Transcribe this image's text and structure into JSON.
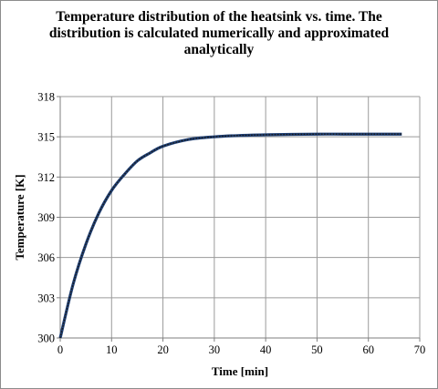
{
  "chart_data": {
    "type": "line",
    "title_lines": [
      "Temperature distribution of the heatsink vs. time.  The",
      "distribution is calculated numerically and approximated",
      "analytically"
    ],
    "xlabel": "Time [min]",
    "ylabel": "Temperature [K]",
    "xlim": [
      0,
      70
    ],
    "ylim": [
      300,
      318
    ],
    "xticks": [
      0,
      10,
      20,
      30,
      40,
      50,
      60,
      70
    ],
    "yticks": [
      300,
      303,
      306,
      309,
      312,
      315,
      318
    ],
    "grid": true,
    "series": [
      {
        "style": "solid",
        "color": "#1f3f73",
        "x": [
          0,
          2.5,
          5,
          7.5,
          10,
          12.5,
          15,
          17.5,
          20,
          25,
          30,
          35,
          40,
          45,
          50,
          55,
          60,
          66.5
        ],
        "y": [
          300,
          304.0,
          307.0,
          309.3,
          311.0,
          312.2,
          313.2,
          313.8,
          314.3,
          314.8,
          315.0,
          315.1,
          315.15,
          315.18,
          315.2,
          315.2,
          315.2,
          315.2
        ]
      },
      {
        "style": "dotted",
        "color": "#1a1a1a",
        "x": [
          0,
          2.5,
          5,
          7.5,
          10,
          12.5,
          15,
          17.5,
          20,
          25,
          30,
          35,
          40,
          45,
          50,
          55,
          60,
          66.5
        ],
        "y": [
          300,
          304.0,
          307.0,
          309.3,
          311.0,
          312.2,
          313.2,
          313.8,
          314.3,
          314.8,
          315.0,
          315.1,
          315.15,
          315.18,
          315.2,
          315.2,
          315.2,
          315.2
        ]
      }
    ]
  }
}
